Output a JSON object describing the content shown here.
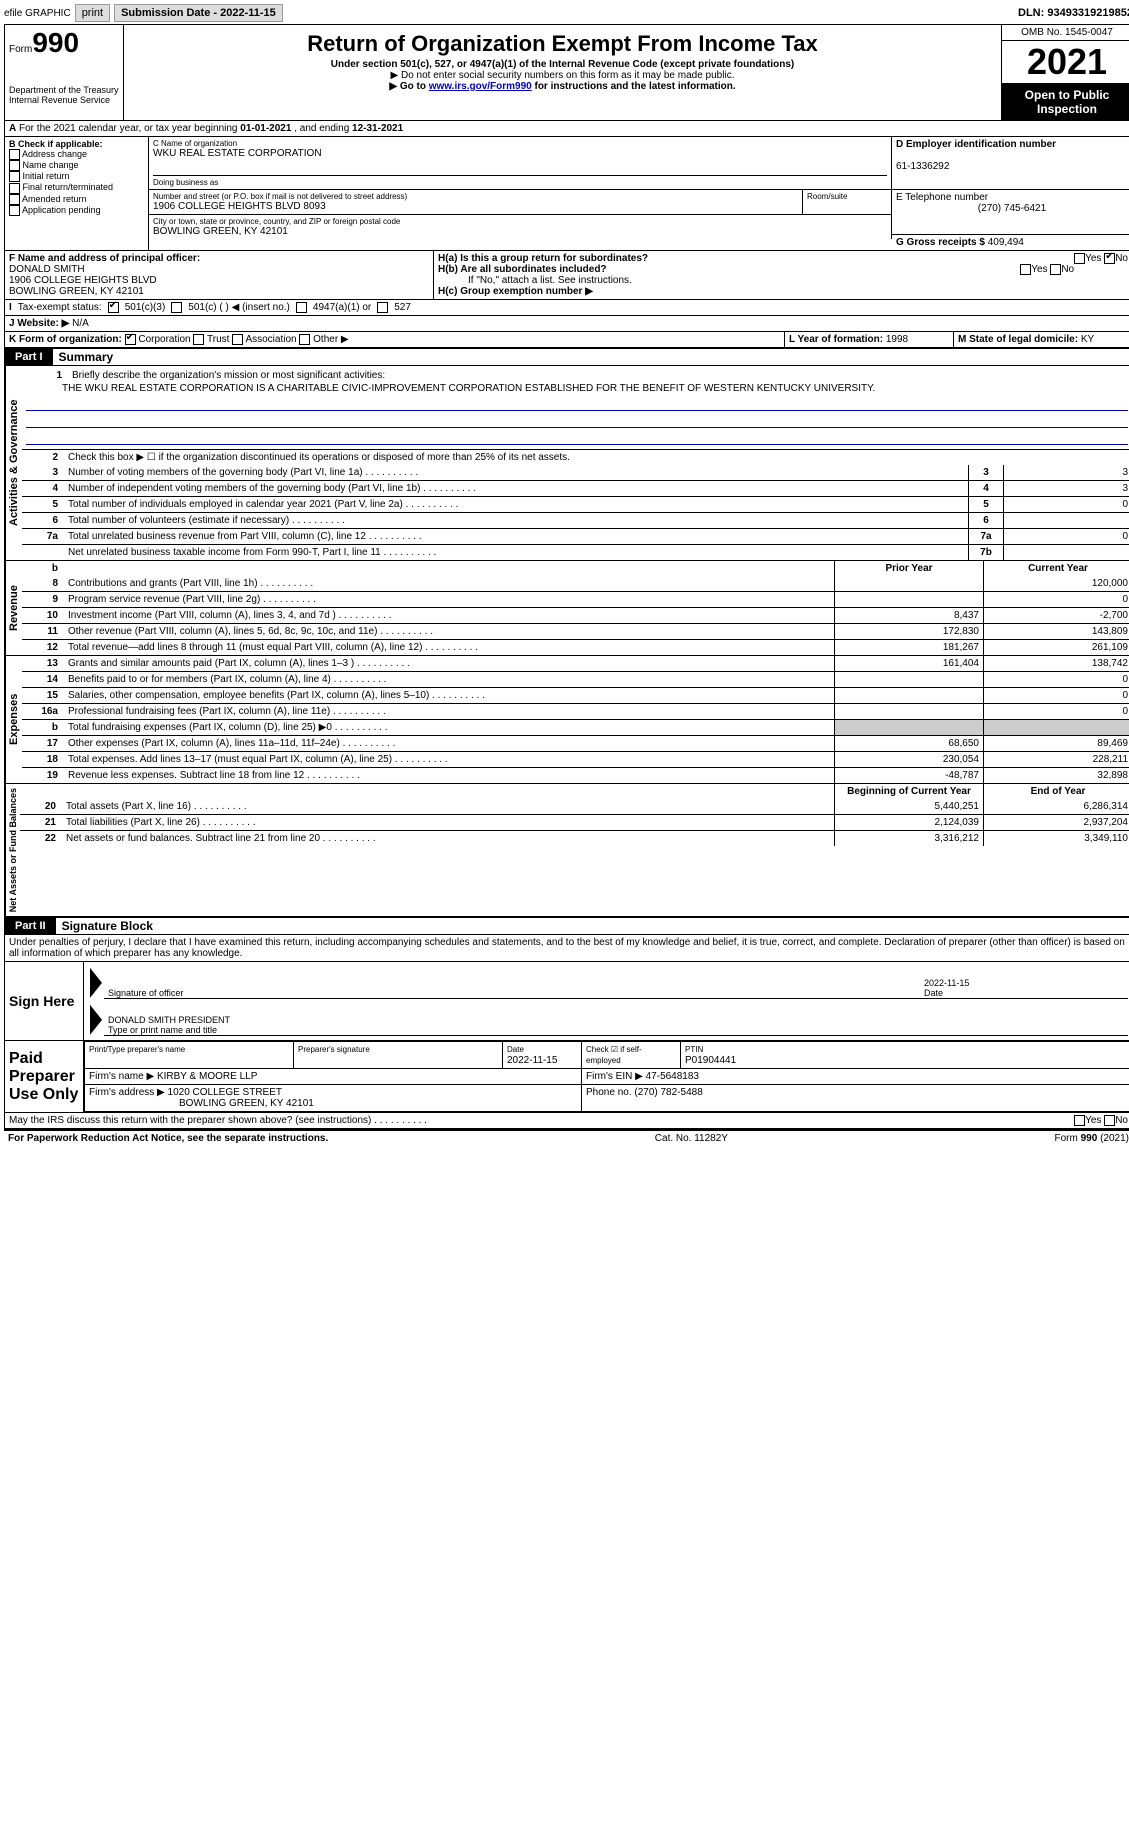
{
  "topbar": {
    "efile_label": "efile GRAPHIC",
    "print_btn": "print",
    "sub_date_label": "Submission Date - ",
    "sub_date": "2022-11-15",
    "dln_label": "DLN: ",
    "dln": "93493319219852"
  },
  "header": {
    "form_label": "Form",
    "form_num": "990",
    "dept": "Department of the Treasury\nInternal Revenue Service",
    "title": "Return of Organization Exempt From Income Tax",
    "subtitle": "Under section 501(c), 527, or 4947(a)(1) of the Internal Revenue Code (except private foundations)",
    "note1": "▶ Do not enter social security numbers on this form as it may be made public.",
    "note2_pre": "▶ Go to ",
    "note2_link": "www.irs.gov/Form990",
    "note2_post": " for instructions and the latest information.",
    "omb": "OMB No. 1545-0047",
    "year": "2021",
    "open_pub": "Open to Public Inspection"
  },
  "rowA": {
    "text_pre": "For the 2021 calendar year, or tax year beginning ",
    "begin": "01-01-2021",
    "mid": " , and ending ",
    "end": "12-31-2021"
  },
  "sectionB": {
    "label": "B Check if applicable:",
    "opts": [
      "Address change",
      "Name change",
      "Initial return",
      "Final return/terminated",
      "Amended return",
      "Application pending"
    ],
    "c_name_label": "C Name of organization",
    "c_name": "WKU REAL ESTATE CORPORATION",
    "dba_label": "Doing business as",
    "addr_label": "Number and street (or P.O. box if mail is not delivered to street address)",
    "room_label": "Room/suite",
    "addr": "1906 COLLEGE HEIGHTS BLVD 8093",
    "city_label": "City or town, state or province, country, and ZIP or foreign postal code",
    "city": "BOWLING GREEN, KY  42101",
    "d_label": "D Employer identification number",
    "ein": "61-1336292",
    "e_label": "E Telephone number",
    "tel": "(270) 745-6421",
    "g_label": "G Gross receipts $ ",
    "gross": "409,494"
  },
  "sectionF": {
    "f_label": "F Name and address of principal officer:",
    "officer": "DONALD SMITH",
    "officer_addr1": "1906 COLLEGE HEIGHTS BLVD",
    "officer_addr2": "BOWLING GREEN, KY  42101",
    "ha_label": "H(a)  Is this a group return for subordinates?",
    "hb_label": "H(b)  Are all subordinates included?",
    "hb_note": "If \"No,\" attach a list. See instructions.",
    "hc_label": "H(c)  Group exemption number ▶"
  },
  "rowI": {
    "label": "Tax-exempt status:",
    "opt1": "501(c)(3)",
    "opt2": "501(c) (  ) ◀ (insert no.)",
    "opt3": "4947(a)(1) or",
    "opt4": "527"
  },
  "rowJ": {
    "label": "Website: ▶",
    "val": "N/A"
  },
  "rowK": {
    "k_label": "K Form of organization:",
    "opts": [
      "Corporation",
      "Trust",
      "Association",
      "Other ▶"
    ],
    "l_label": "L Year of formation: ",
    "l_val": "1998",
    "m_label": "M State of legal domicile: ",
    "m_val": "KY"
  },
  "part1": {
    "label": "Part I",
    "title": "Summary",
    "mission_label": "Briefly describe the organization's mission or most significant activities:",
    "mission": "THE WKU REAL ESTATE CORPORATION IS A CHARITABLE CIVIC-IMPROVEMENT CORPORATION ESTABLISHED FOR THE BENEFIT OF WESTERN KENTUCKY UNIVERSITY.",
    "line2": "Check this box ▶ ☐ if the organization discontinued its operations or disposed of more than 25% of its net assets.",
    "gov_label": "Activities & Governance",
    "rev_label": "Revenue",
    "exp_label": "Expenses",
    "net_label": "Net Assets or Fund Balances",
    "prior_head": "Prior Year",
    "curr_head": "Current Year",
    "begin_head": "Beginning of Current Year",
    "end_head": "End of Year",
    "lines_gov": [
      {
        "n": "3",
        "t": "Number of voting members of the governing body (Part VI, line 1a)",
        "box": "3",
        "v": "3"
      },
      {
        "n": "4",
        "t": "Number of independent voting members of the governing body (Part VI, line 1b)",
        "box": "4",
        "v": "3"
      },
      {
        "n": "5",
        "t": "Total number of individuals employed in calendar year 2021 (Part V, line 2a)",
        "box": "5",
        "v": "0"
      },
      {
        "n": "6",
        "t": "Total number of volunteers (estimate if necessary)",
        "box": "6",
        "v": ""
      },
      {
        "n": "7a",
        "t": "Total unrelated business revenue from Part VIII, column (C), line 12",
        "box": "7a",
        "v": "0"
      },
      {
        "n": "",
        "t": "Net unrelated business taxable income from Form 990-T, Part I, line 11",
        "box": "7b",
        "v": ""
      }
    ],
    "lines_rev": [
      {
        "n": "8",
        "t": "Contributions and grants (Part VIII, line 1h)",
        "p": "",
        "c": "120,000"
      },
      {
        "n": "9",
        "t": "Program service revenue (Part VIII, line 2g)",
        "p": "",
        "c": "0"
      },
      {
        "n": "10",
        "t": "Investment income (Part VIII, column (A), lines 3, 4, and 7d )",
        "p": "8,437",
        "c": "-2,700"
      },
      {
        "n": "11",
        "t": "Other revenue (Part VIII, column (A), lines 5, 6d, 8c, 9c, 10c, and 11e)",
        "p": "172,830",
        "c": "143,809"
      },
      {
        "n": "12",
        "t": "Total revenue—add lines 8 through 11 (must equal Part VIII, column (A), line 12)",
        "p": "181,267",
        "c": "261,109"
      }
    ],
    "lines_exp": [
      {
        "n": "13",
        "t": "Grants and similar amounts paid (Part IX, column (A), lines 1–3 )",
        "p": "161,404",
        "c": "138,742"
      },
      {
        "n": "14",
        "t": "Benefits paid to or for members (Part IX, column (A), line 4)",
        "p": "",
        "c": "0"
      },
      {
        "n": "15",
        "t": "Salaries, other compensation, employee benefits (Part IX, column (A), lines 5–10)",
        "p": "",
        "c": "0"
      },
      {
        "n": "16a",
        "t": "Professional fundraising fees (Part IX, column (A), line 11e)",
        "p": "",
        "c": "0"
      },
      {
        "n": "b",
        "t": "Total fundraising expenses (Part IX, column (D), line 25) ▶0",
        "p": "gray",
        "c": "gray"
      },
      {
        "n": "17",
        "t": "Other expenses (Part IX, column (A), lines 11a–11d, 11f–24e)",
        "p": "68,650",
        "c": "89,469"
      },
      {
        "n": "18",
        "t": "Total expenses. Add lines 13–17 (must equal Part IX, column (A), line 25)",
        "p": "230,054",
        "c": "228,211"
      },
      {
        "n": "19",
        "t": "Revenue less expenses. Subtract line 18 from line 12",
        "p": "-48,787",
        "c": "32,898"
      }
    ],
    "lines_net": [
      {
        "n": "20",
        "t": "Total assets (Part X, line 16)",
        "p": "5,440,251",
        "c": "6,286,314"
      },
      {
        "n": "21",
        "t": "Total liabilities (Part X, line 26)",
        "p": "2,124,039",
        "c": "2,937,204"
      },
      {
        "n": "22",
        "t": "Net assets or fund balances. Subtract line 21 from line 20",
        "p": "3,316,212",
        "c": "3,349,110"
      }
    ]
  },
  "part2": {
    "label": "Part II",
    "title": "Signature Block",
    "declaration": "Under penalties of perjury, I declare that I have examined this return, including accompanying schedules and statements, and to the best of my knowledge and belief, it is true, correct, and complete. Declaration of preparer (other than officer) is based on all information of which preparer has any knowledge.",
    "sign_here": "Sign Here",
    "sig_officer": "Signature of officer",
    "sig_date": "2022-11-15",
    "date_label": "Date",
    "officer_name": "DONALD SMITH  PRESIDENT",
    "type_label": "Type or print name and title",
    "paid_prep": "Paid Preparer Use Only",
    "prep_name_label": "Print/Type preparer's name",
    "prep_sig_label": "Preparer's signature",
    "prep_date_label": "Date",
    "prep_date": "2022-11-15",
    "check_label": "Check ☑ if self-employed",
    "ptin_label": "PTIN",
    "ptin": "P01904441",
    "firm_name_label": "Firm's name    ▶ ",
    "firm_name": "KIRBY & MOORE LLP",
    "firm_ein_label": "Firm's EIN ▶ ",
    "firm_ein": "47-5648183",
    "firm_addr_label": "Firm's address ▶ ",
    "firm_addr1": "1020 COLLEGE STREET",
    "firm_addr2": "BOWLING GREEN, KY  42101",
    "phone_label": "Phone no. ",
    "phone": "(270) 782-5488",
    "discuss": "May the IRS discuss this return with the preparer shown above? (see instructions)"
  },
  "footer": {
    "paperwork": "For Paperwork Reduction Act Notice, see the separate instructions.",
    "cat": "Cat. No. 11282Y",
    "form": "Form 990 (2021)"
  }
}
